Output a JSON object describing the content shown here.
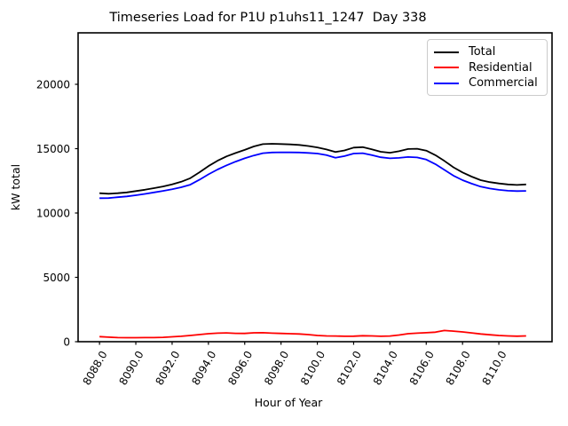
{
  "chart_data": {
    "type": "line",
    "title": "Timeseries Load for P1U p1uhs11_1247  Day 338",
    "xlabel": "Hour of Year",
    "ylabel": "kW total",
    "xlim": [
      8086.82,
      8112.93
    ],
    "ylim": [
      0,
      24000
    ],
    "grid": false,
    "legend_position": "upper right",
    "xticks": [
      8088,
      8090,
      8092,
      8094,
      8096,
      8098,
      8100,
      8102,
      8104,
      8106,
      8108,
      8110
    ],
    "xtick_labels": [
      "8088.0",
      "8090.0",
      "8092.0",
      "8094.0",
      "8096.0",
      "8098.0",
      "8100.0",
      "8102.0",
      "8104.0",
      "8106.0",
      "8108.0",
      "8110.0"
    ],
    "yticks": [
      0,
      5000,
      10000,
      15000,
      20000
    ],
    "ytick_labels": [
      "0",
      "5000",
      "10000",
      "15000",
      "20000"
    ],
    "x": [
      8088,
      8088.5,
      8089,
      8089.5,
      8090,
      8090.5,
      8091,
      8091.5,
      8092,
      8092.5,
      8093,
      8093.5,
      8094,
      8094.5,
      8095,
      8095.5,
      8096,
      8096.5,
      8097,
      8097.5,
      8098,
      8098.5,
      8099,
      8099.5,
      8100,
      8100.5,
      8101,
      8101.5,
      8102,
      8102.5,
      8103,
      8103.5,
      8104,
      8104.5,
      8105,
      8105.5,
      8106,
      8106.5,
      8107,
      8107.5,
      8108,
      8108.5,
      8109,
      8109.5,
      8110,
      8110.5,
      8111,
      8111.5
    ],
    "series": [
      {
        "name": "Total",
        "color": "#000000",
        "values": [
          11540,
          11500,
          11540,
          11600,
          11700,
          11810,
          11930,
          12060,
          12230,
          12430,
          12700,
          13150,
          13640,
          14060,
          14400,
          14660,
          14900,
          15170,
          15350,
          15380,
          15360,
          15330,
          15290,
          15210,
          15100,
          14940,
          14740,
          14860,
          15080,
          15120,
          14950,
          14760,
          14680,
          14800,
          14970,
          14990,
          14850,
          14500,
          14050,
          13550,
          13150,
          12830,
          12550,
          12400,
          12300,
          12220,
          12180,
          12220
        ]
      },
      {
        "name": "Residential",
        "color": "#ff0000",
        "values": [
          390,
          350,
          320,
          310,
          310,
          320,
          320,
          340,
          380,
          420,
          480,
          550,
          620,
          660,
          680,
          650,
          640,
          690,
          700,
          660,
          640,
          620,
          600,
          550,
          480,
          450,
          440,
          420,
          430,
          460,
          450,
          420,
          440,
          520,
          620,
          660,
          700,
          740,
          870,
          820,
          760,
          680,
          600,
          540,
          480,
          450,
          430,
          450
        ]
      },
      {
        "name": "Commercial",
        "color": "#0000ff",
        "values": [
          11150,
          11160,
          11230,
          11290,
          11380,
          11480,
          11600,
          11720,
          11850,
          12000,
          12200,
          12580,
          13000,
          13380,
          13700,
          13990,
          14250,
          14470,
          14650,
          14700,
          14720,
          14710,
          14700,
          14670,
          14620,
          14500,
          14300,
          14420,
          14620,
          14650,
          14500,
          14330,
          14250,
          14280,
          14350,
          14320,
          14150,
          13800,
          13350,
          12900,
          12550,
          12280,
          12050,
          11900,
          11800,
          11730,
          11700,
          11720
        ]
      }
    ]
  }
}
